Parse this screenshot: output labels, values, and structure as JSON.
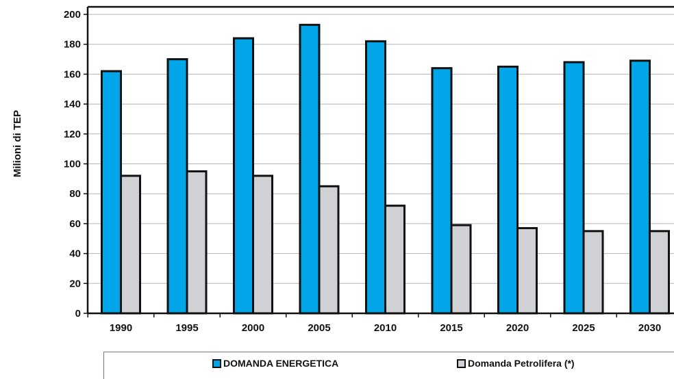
{
  "chart_data": {
    "type": "bar",
    "categories": [
      "1990",
      "1995",
      "2000",
      "2005",
      "2010",
      "2015",
      "2020",
      "2025",
      "2030"
    ],
    "series": [
      {
        "name": "DOMANDA ENERGETICA",
        "color": "#00a6e8",
        "values": [
          162,
          170,
          184,
          193,
          182,
          164,
          165,
          168,
          169
        ]
      },
      {
        "name": "Domanda Petrolifera (*)",
        "color": "#d0d1d5",
        "values": [
          92,
          95,
          92,
          85,
          72,
          59,
          57,
          55,
          55
        ]
      }
    ],
    "xlabel": "",
    "ylabel": "Milioni di TEP",
    "ylim": [
      0,
      200
    ],
    "yticks": [
      0,
      20,
      40,
      60,
      80,
      100,
      120,
      140,
      160,
      180,
      200
    ],
    "grid": true,
    "legend_position": "bottom"
  }
}
